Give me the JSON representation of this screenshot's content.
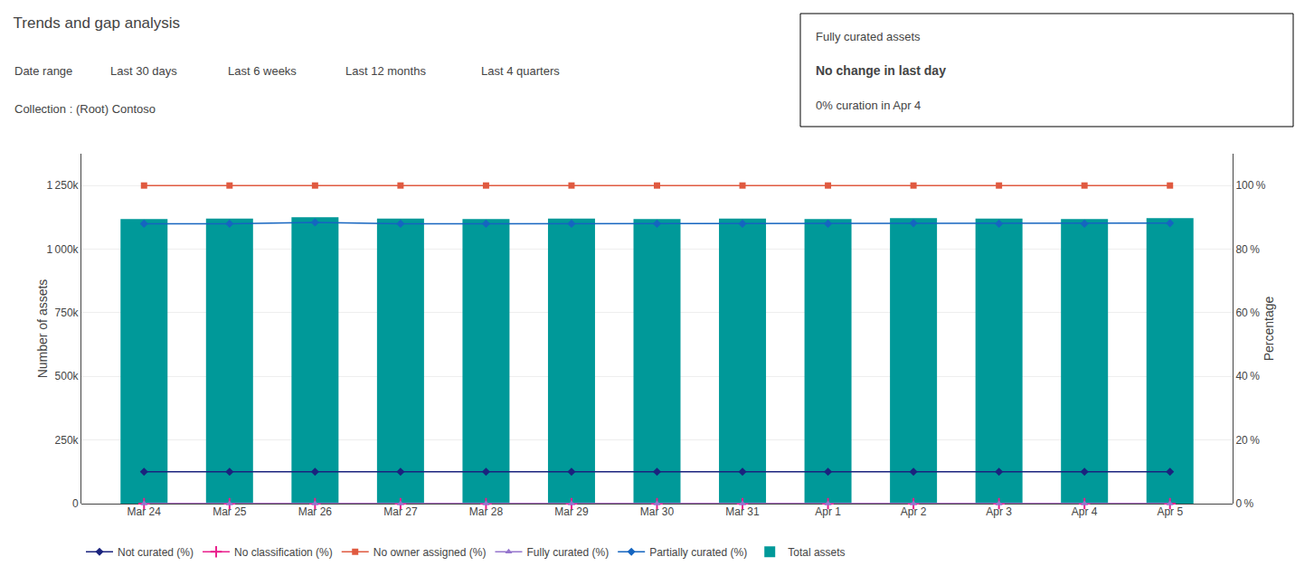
{
  "chart_data": {
    "type": "bar",
    "title": "Trends and gap analysis",
    "y_label": "Number of assets",
    "y2_label": "Percentage",
    "categories": [
      "Mar 24",
      "Mar 25",
      "Mar 26",
      "Mar 27",
      "Mar 28",
      "Mar 29",
      "Mar 30",
      "Mar 31",
      "Apr 1",
      "Apr 2",
      "Apr 3",
      "Apr 4",
      "Apr 5"
    ],
    "series": [
      {
        "name": "Total assets",
        "type": "bar",
        "color": "#009999",
        "values": [
          1118000,
          1120000,
          1125000,
          1120000,
          1118000,
          1120000,
          1118000,
          1120000,
          1118000,
          1122000,
          1120000,
          1118000,
          1122000
        ]
      },
      {
        "name": "Not curated (%)",
        "type": "line",
        "color": "#1a237e",
        "marker": "diamond",
        "values": [
          125000,
          125000,
          125000,
          125000,
          125000,
          125000,
          125000,
          125000,
          125000,
          125000,
          125000,
          125000,
          125000
        ]
      },
      {
        "name": "No classification (%)",
        "type": "line",
        "color": "#e91e8c",
        "marker": "plus",
        "values": [
          0,
          0,
          0,
          0,
          0,
          0,
          0,
          0,
          0,
          0,
          0,
          0,
          0
        ]
      },
      {
        "name": "No owner assigned (%)",
        "type": "line",
        "color": "#e05a40",
        "marker": "square",
        "values": [
          1250000,
          1250000,
          1250000,
          1250000,
          1250000,
          1250000,
          1250000,
          1250000,
          1250000,
          1250000,
          1250000,
          1250000,
          1250000
        ]
      },
      {
        "name": "Fully curated (%)",
        "type": "line",
        "color": "#9575cd",
        "marker": "triangle-up",
        "values": [
          0,
          0,
          0,
          0,
          0,
          0,
          0,
          0,
          0,
          0,
          0,
          0,
          0
        ]
      },
      {
        "name": "Partially curated (%)",
        "type": "line",
        "color": "#1565c0",
        "marker": "diamond",
        "values": [
          1100000,
          1100000,
          1105000,
          1100000,
          1100000,
          1100000,
          1100000,
          1100000,
          1100000,
          1102000,
          1100000,
          1100000,
          1102000
        ]
      }
    ],
    "ylim": [
      0,
      1375000
    ],
    "yticks": [
      0,
      {
        "value": 250000,
        "label": "250k"
      },
      {
        "value": 500000,
        "label": "500k"
      },
      {
        "value": 750000,
        "label": "750k"
      },
      {
        "value": 1000000,
        "label": "1 000k"
      },
      {
        "value": 1250000,
        "label": "1 250k"
      }
    ],
    "y2lim": [
      0,
      110
    ],
    "y2ticks": [
      {
        "value": 0,
        "label": "0 %"
      },
      {
        "value": 20,
        "label": "20 %"
      },
      {
        "value": 40,
        "label": "40 %"
      },
      {
        "value": 60,
        "label": "60 %"
      },
      {
        "value": 80,
        "label": "80 %"
      },
      {
        "value": 100,
        "label": "100 %"
      }
    ],
    "grid": true,
    "legend": "bottom",
    "annotations": [
      "Date range",
      "Last 30 days",
      "Last 6 weeks",
      "Last 12 months",
      "Last 4 quarters",
      "Collection : (Root) Contoso",
      "Fully curated assets",
      "No change in last day",
      "0% curation in Apr 4"
    ]
  }
}
